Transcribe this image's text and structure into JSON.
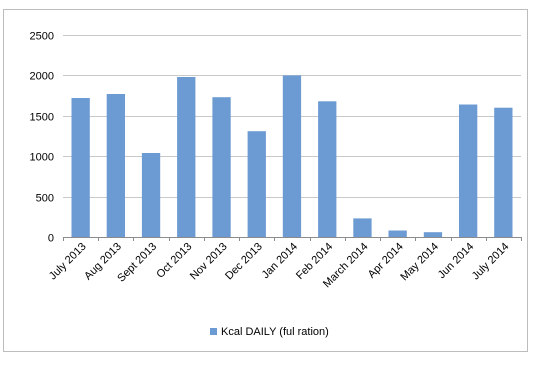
{
  "chart_data": {
    "type": "bar",
    "categories": [
      "July 2013",
      "Aug 2013",
      "Sept 2013",
      "Oct 2013",
      "Nov 2013",
      "Dec 2013",
      "Jan 2014",
      "Feb 2014",
      "March 2014",
      "Apr 2014",
      "May 2014",
      "Jun 2014",
      "July 2014"
    ],
    "series": [
      {
        "name": "Kcal DAILY (ful ration)",
        "values": [
          1720,
          1770,
          1040,
          1980,
          1730,
          1310,
          2000,
          1680,
          230,
          80,
          60,
          1640,
          1600
        ],
        "color": "#6b9bd2"
      }
    ],
    "y_ticks": [
      "0",
      "500",
      "1000",
      "1500",
      "2000",
      "2500"
    ],
    "ylim": [
      0,
      2500
    ],
    "grid": true,
    "legend_position": "bottom"
  }
}
